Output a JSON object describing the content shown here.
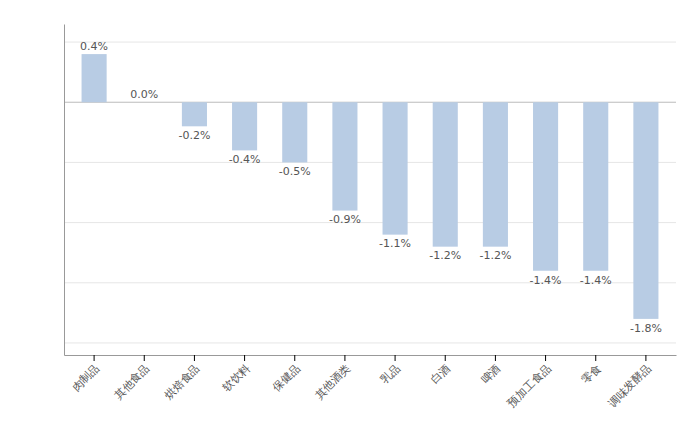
{
  "chart_data": {
    "type": "bar",
    "categories": [
      "肉制品",
      "其他食品",
      "烘焙食品",
      "软饮料",
      "保健品",
      "其他酒类",
      "乳品",
      "白酒",
      "啤酒",
      "预加工食品",
      "零食",
      "调味发酵品"
    ],
    "values": [
      0.4,
      0.0,
      -0.2,
      -0.4,
      -0.5,
      -0.9,
      -1.1,
      -1.2,
      -1.2,
      -1.4,
      -1.4,
      -1.8
    ],
    "value_labels": [
      "0.4%",
      "0.0%",
      "-0.2%",
      "-0.4%",
      "-0.5%",
      "-0.9%",
      "-1.1%",
      "-1.2%",
      "-1.2%",
      "-1.4%",
      "-1.4%",
      "-1.8%"
    ],
    "data_labels": true,
    "color": "#b8cce4",
    "ylim": [
      -2.1,
      0.65
    ],
    "yticks": [
      -2.0,
      -1.5,
      -1.0,
      -0.5,
      0.0,
      0.5
    ],
    "grid": true,
    "tick_labels": "x"
  }
}
